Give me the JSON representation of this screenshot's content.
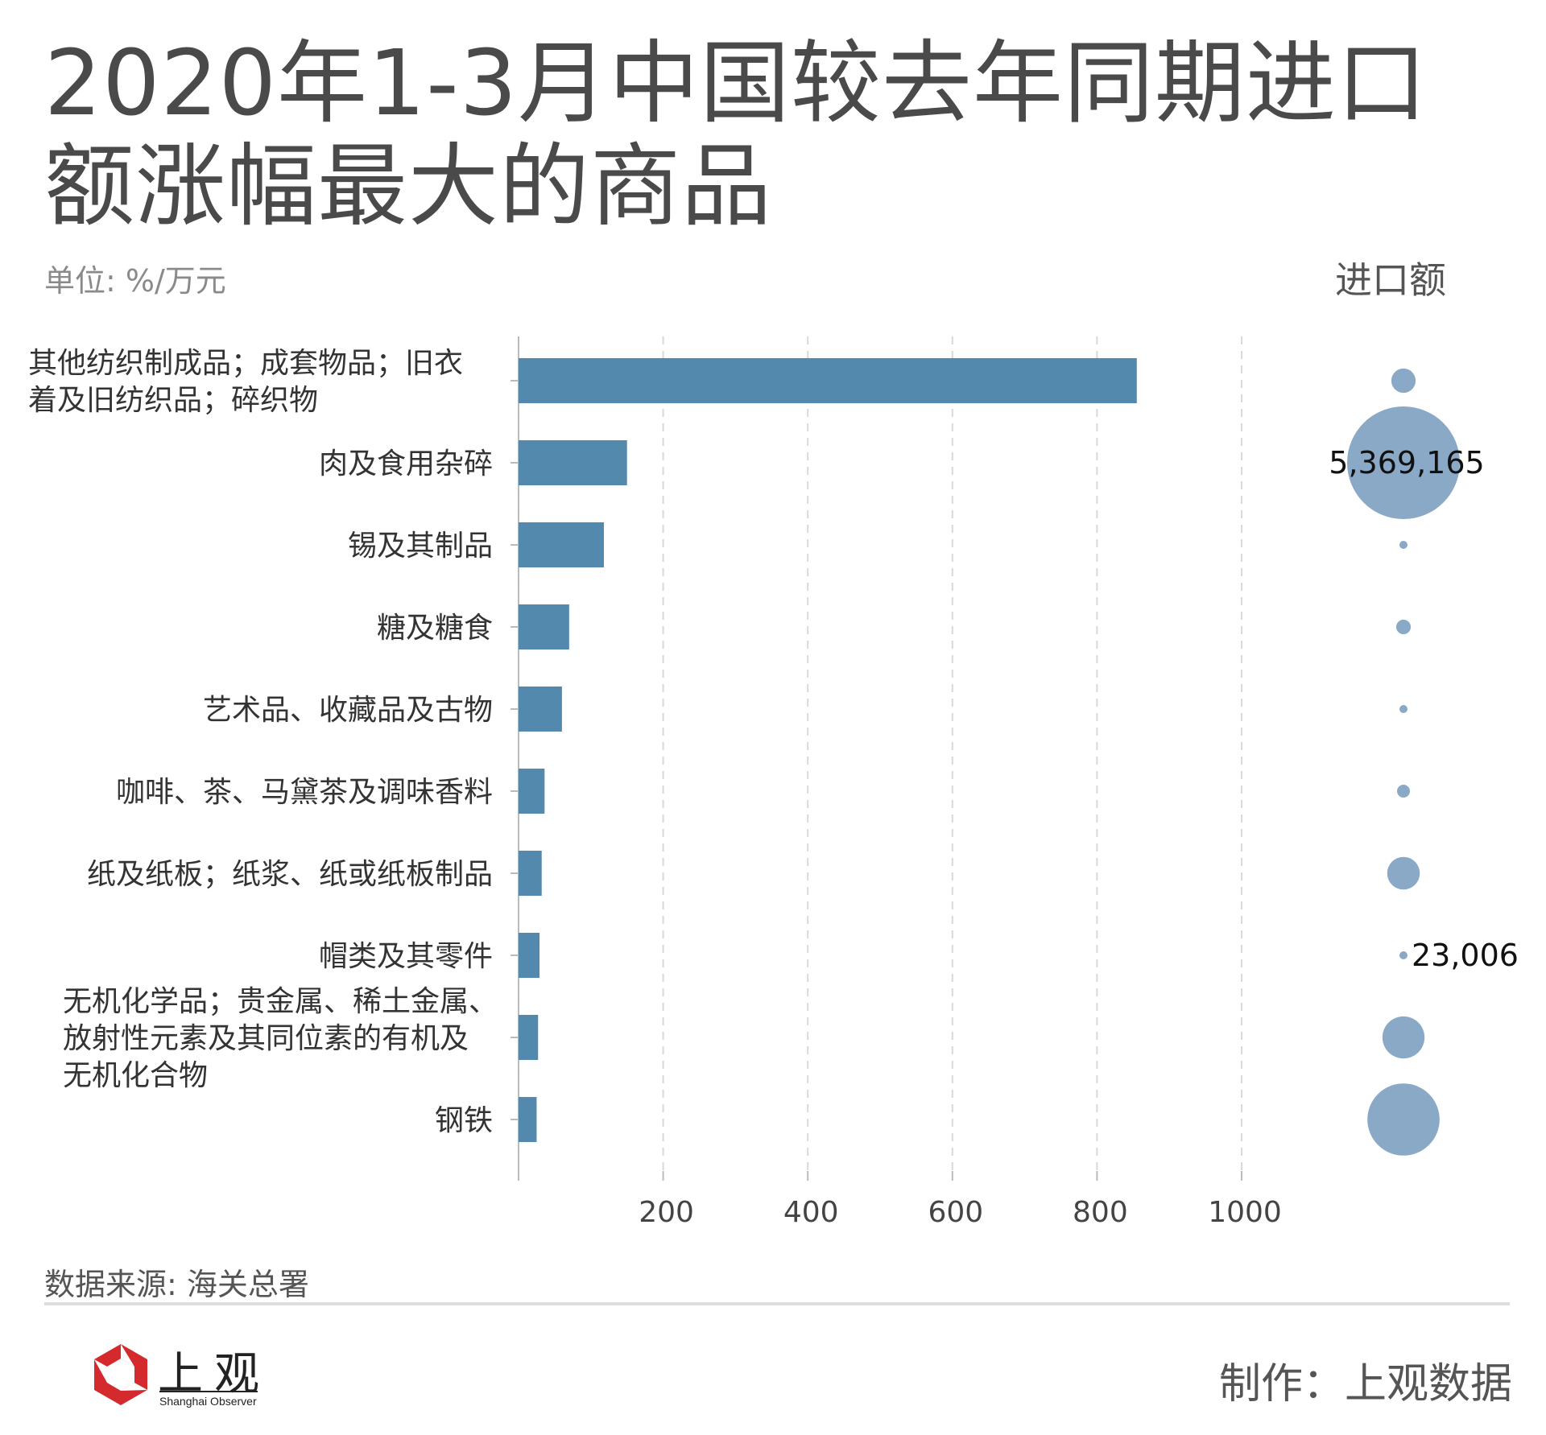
{
  "header": {
    "title": "2020年1-3月中国较去年同期进口额涨幅最大的商品",
    "unit": "单位: %/万元",
    "volume_title": "进口额"
  },
  "footer": {
    "source": "数据来源: 海关总署",
    "credit": "制作：上观数据",
    "logo_cn": "上观",
    "logo_en": "Shanghai Observer"
  },
  "colors": {
    "bar": "#5289ad",
    "bubble": "#8aa9c7",
    "grid": "#d9d9d9",
    "axis": "#bbbbbb",
    "text": "#333333",
    "logo_red": "#d42a2e"
  },
  "chart_data": {
    "type": "bar",
    "orientation": "horizontal",
    "categories": [
      "其他纺织制成品；成套物品；旧衣着及旧纺织品；碎织物",
      "肉及食用杂碎",
      "锡及其制品",
      "糖及糖食",
      "艺术品、收藏品及古物",
      "咖啡、茶、马黛茶及调味香料",
      "纸及纸板；纸浆、纸或纸板制品",
      "帽类及其零件",
      "无机化学品；贵金属、稀土金属、放射性元素及其同位素的有机及无机化合物",
      "钢铁"
    ],
    "label_lines": [
      [
        "其他纺织制成品；成套物品；旧衣",
        "着及旧纺织品；碎织物"
      ],
      [
        "肉及食用杂碎"
      ],
      [
        "锡及其制品"
      ],
      [
        "糖及糖食"
      ],
      [
        "艺术品、收藏品及古物"
      ],
      [
        "咖啡、茶、马黛茶及调味香料"
      ],
      [
        "纸及纸板；纸浆、纸或纸板制品"
      ],
      [
        "帽类及其零件"
      ],
      [
        "无机化学品；贵金属、稀土金属、",
        "放射性元素及其同位素的有机及",
        "无机化合物"
      ],
      [
        "钢铁"
      ]
    ],
    "values": [
      855,
      150,
      118,
      70,
      60,
      36,
      32,
      29,
      27,
      25
    ],
    "xlim": [
      0,
      1000
    ],
    "xticks": [
      200,
      400,
      600,
      800,
      1000
    ],
    "grid": true,
    "bubble_series": {
      "name": "进口额",
      "values": [
        250000,
        5369165,
        23006,
        90000,
        20000,
        70000,
        450000,
        23006,
        750000,
        2200000
      ],
      "labels": [
        "",
        "5,369,165",
        "",
        "",
        "",
        "",
        "",
        "23,006",
        "",
        ""
      ]
    }
  }
}
